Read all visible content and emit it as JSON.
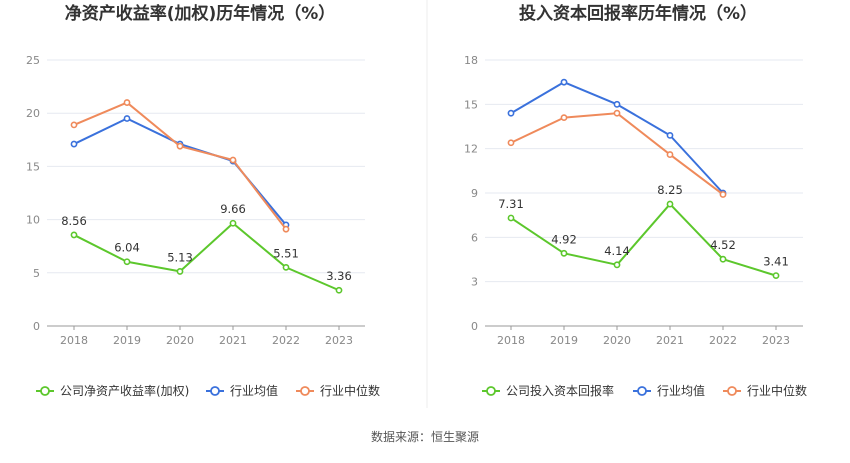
{
  "source": "数据来源：恒生聚源",
  "colors": {
    "company": "#5cc72c",
    "avg": "#3a71dc",
    "median": "#ef8a5b",
    "grid": "#e6e9f0",
    "axis": "#999999"
  },
  "chart_data": [
    {
      "type": "line",
      "title": "净资产收益率(加权)历年情况（%）",
      "x": [
        "2018",
        "2019",
        "2020",
        "2021",
        "2022",
        "2023"
      ],
      "ylim": [
        0,
        25
      ],
      "yticks": [
        0,
        5,
        10,
        15,
        20,
        25
      ],
      "grid": true,
      "legend_position": "bottom",
      "series": [
        {
          "name": "公司净资产收益率(加权)",
          "color_key": "company",
          "values": [
            8.56,
            6.04,
            5.13,
            9.66,
            5.51,
            3.36
          ],
          "labels": [
            "8.56",
            "6.04",
            "5.13",
            "9.66",
            "5.51",
            "3.36"
          ]
        },
        {
          "name": "行业均值",
          "color_key": "avg",
          "values": [
            17.1,
            19.5,
            17.1,
            15.5,
            9.5,
            null
          ]
        },
        {
          "name": "行业中位数",
          "color_key": "median",
          "values": [
            18.9,
            21.0,
            16.9,
            15.6,
            9.1,
            null
          ]
        }
      ]
    },
    {
      "type": "line",
      "title": "投入资本回报率历年情况（%）",
      "x": [
        "2018",
        "2019",
        "2020",
        "2021",
        "2022",
        "2023"
      ],
      "ylim": [
        0,
        18
      ],
      "yticks": [
        0,
        3,
        6,
        9,
        12,
        15,
        18
      ],
      "grid": true,
      "legend_position": "bottom",
      "series": [
        {
          "name": "公司投入资本回报率",
          "color_key": "company",
          "values": [
            7.31,
            4.92,
            4.14,
            8.25,
            4.52,
            3.41
          ],
          "labels": [
            "7.31",
            "4.92",
            "4.14",
            "8.25",
            "4.52",
            "3.41"
          ]
        },
        {
          "name": "行业均值",
          "color_key": "avg",
          "values": [
            14.4,
            16.5,
            15.0,
            12.9,
            9.0,
            null
          ]
        },
        {
          "name": "行业中位数",
          "color_key": "median",
          "values": [
            12.4,
            14.1,
            14.4,
            11.6,
            8.9,
            null
          ]
        }
      ]
    }
  ]
}
